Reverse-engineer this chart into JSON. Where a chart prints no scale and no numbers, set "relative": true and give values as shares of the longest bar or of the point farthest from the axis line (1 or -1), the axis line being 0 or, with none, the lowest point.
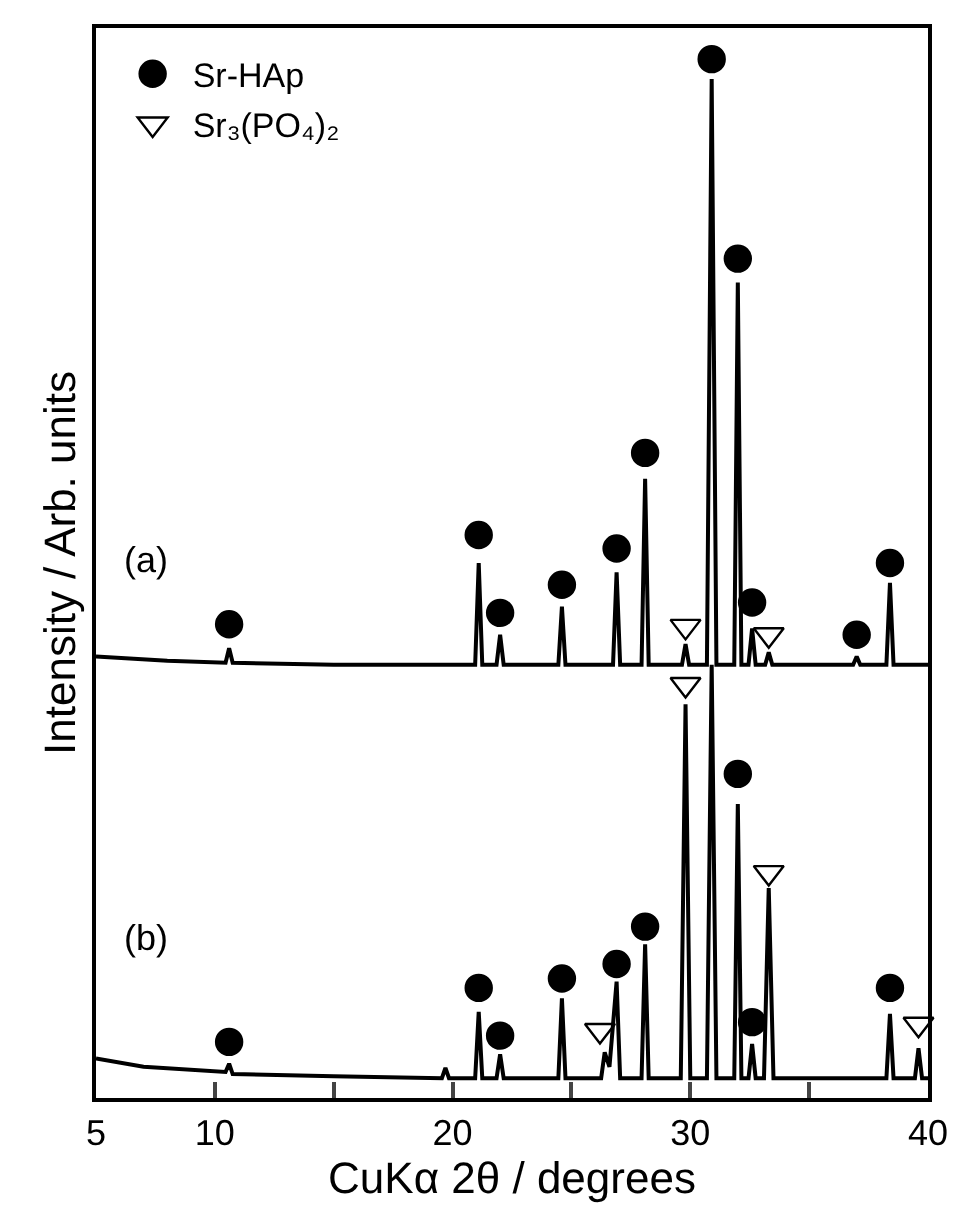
{
  "chart_data": {
    "type": "line",
    "relative": true,
    "xlabel": "CuKα 2θ / degrees",
    "ylabel": "Intensity / Arb. units",
    "xlim": [
      5,
      40
    ],
    "xticks": [
      5,
      10,
      {
        "value": 15,
        "label": null
      },
      20,
      {
        "value": 25,
        "label": null
      },
      30,
      {
        "value": 35,
        "label": null
      },
      40
    ],
    "legend": "top left",
    "line_style": "solid",
    "annotations": [
      "(a)",
      "(b)"
    ],
    "series": [
      {
        "color": "#000000",
        "x": [
          5,
          8,
          10.45,
          10.6,
          10.75,
          15,
          20.95,
          21.1,
          21.25,
          21.85,
          22.0,
          22.15,
          24.45,
          24.6,
          24.75,
          26.75,
          26.9,
          27.05,
          27.95,
          28.1,
          28.25,
          29.65,
          29.8,
          29.95,
          30.7,
          30.9,
          31.1,
          31.85,
          32.0,
          32.15,
          32.45,
          32.6,
          32.75,
          33.15,
          33.3,
          33.45,
          36.85,
          37.0,
          37.15,
          38.25,
          38.4,
          38.55,
          40
        ],
        "values": [
          0.425,
          0.421,
          0.419,
          0.433,
          0.419,
          0.417,
          0.417,
          0.515,
          0.417,
          0.417,
          0.446,
          0.417,
          0.417,
          0.473,
          0.417,
          0.417,
          0.506,
          0.417,
          0.417,
          0.596,
          0.417,
          0.417,
          0.437,
          0.417,
          0.417,
          0.981,
          0.417,
          0.417,
          0.785,
          0.417,
          0.417,
          0.452,
          0.417,
          0.417,
          0.429,
          0.417,
          0.417,
          0.425,
          0.417,
          0.417,
          0.496,
          0.417,
          0.417
        ]
      },
      {
        "color": "#000000",
        "x": [
          5,
          7,
          10.45,
          10.6,
          10.75,
          15,
          19.55,
          19.7,
          19.85,
          20.95,
          21.1,
          21.25,
          21.85,
          22.0,
          22.15,
          24.45,
          24.6,
          24.75,
          26.25,
          26.4,
          26.6,
          26.9,
          27.05,
          27.95,
          28.1,
          28.25,
          29.6,
          29.8,
          30.0,
          30.7,
          30.9,
          31.1,
          31.85,
          32.0,
          32.15,
          32.45,
          32.6,
          32.75,
          33.1,
          33.3,
          33.5,
          38.25,
          38.4,
          38.55,
          39.45,
          39.6,
          39.75,
          40
        ],
        "values": [
          0.038,
          0.03,
          0.025,
          0.033,
          0.023,
          0.021,
          0.019,
          0.029,
          0.019,
          0.019,
          0.083,
          0.019,
          0.019,
          0.042,
          0.019,
          0.019,
          0.096,
          0.019,
          0.019,
          0.044,
          0.03,
          0.112,
          0.019,
          0.019,
          0.148,
          0.019,
          0.019,
          0.379,
          0.019,
          0.019,
          0.417,
          0.019,
          0.019,
          0.283,
          0.019,
          0.019,
          0.052,
          0.019,
          0.019,
          0.202,
          0.019,
          0.019,
          0.081,
          0.019,
          0.019,
          0.048,
          0.019,
          0.019
        ]
      },
      {
        "type": "scatter",
        "marker": "circle",
        "name": "Sr-HAp",
        "color": "#000000",
        "x": [
          10.6,
          21.1,
          22.0,
          24.6,
          26.9,
          28.1,
          30.9,
          32.0,
          32.6,
          37.0,
          38.4,
          10.6,
          21.1,
          22.0,
          24.6,
          26.9,
          28.1,
          32.0,
          32.6,
          38.4
        ],
        "values": [
          0.456,
          0.542,
          0.467,
          0.494,
          0.529,
          0.621,
          1.0,
          0.808,
          0.477,
          0.446,
          0.515,
          0.054,
          0.106,
          0.06,
          0.115,
          0.129,
          0.165,
          0.312,
          0.073,
          0.106
        ]
      },
      {
        "type": "scatter",
        "marker": "triangle",
        "name": "Sr₃(PO₄)₂",
        "color": "#000000",
        "x": [
          29.8,
          33.3,
          26.2,
          29.8,
          33.3,
          39.6
        ],
        "values": [
          0.454,
          0.446,
          0.065,
          0.398,
          0.217,
          0.071
        ]
      }
    ]
  }
}
